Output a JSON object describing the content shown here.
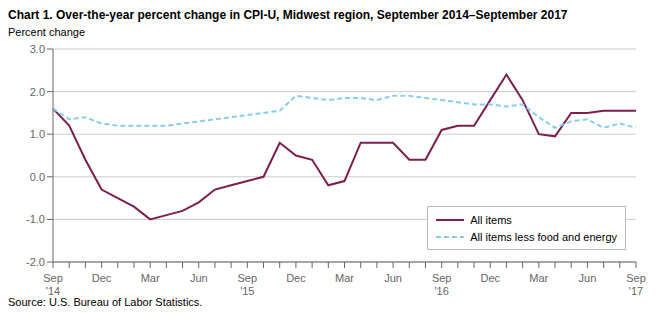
{
  "chart_data": {
    "type": "line",
    "title": "Chart 1. Over-the-year percent change in CPI-U, Midwest region, September 2014–September 2017",
    "ylabel": "Percent change",
    "source": "Source: U.S. Bureau of Labor Statistics.",
    "categories": [
      "Sep\n'14",
      null,
      null,
      "Dec",
      null,
      null,
      "Mar",
      null,
      null,
      "Jun",
      null,
      null,
      "Sep\n'15",
      null,
      null,
      "Dec",
      null,
      null,
      "Mar",
      null,
      null,
      "Jun",
      null,
      null,
      "Sep\n'16",
      null,
      null,
      "Dec",
      null,
      null,
      "Mar",
      null,
      null,
      "Jun",
      null,
      null,
      "Sep\n'17"
    ],
    "series": [
      {
        "name": "All items",
        "color": "#7B1F4E",
        "line_style": "solid",
        "values": [
          1.6,
          1.2,
          0.4,
          -0.3,
          -0.5,
          -0.7,
          -1.0,
          -0.9,
          -0.8,
          -0.6,
          -0.3,
          -0.2,
          -0.1,
          0.0,
          0.8,
          0.5,
          0.4,
          -0.2,
          -0.1,
          0.8,
          0.8,
          0.8,
          0.4,
          0.4,
          1.1,
          1.2,
          1.2,
          1.8,
          2.4,
          1.8,
          1.0,
          0.95,
          1.5,
          1.5,
          1.55,
          1.55,
          1.55
        ]
      },
      {
        "name": "All items less food and energy",
        "color": "#87CEEB",
        "line_style": "dashed",
        "values": [
          1.6,
          1.35,
          1.4,
          1.25,
          1.2,
          1.2,
          1.2,
          1.2,
          1.25,
          1.3,
          1.35,
          1.4,
          1.45,
          1.5,
          1.55,
          1.9,
          1.85,
          1.8,
          1.85,
          1.85,
          1.8,
          1.9,
          1.9,
          1.85,
          1.8,
          1.75,
          1.7,
          1.7,
          1.65,
          1.7,
          1.4,
          1.15,
          1.3,
          1.35,
          1.15,
          1.25,
          1.15
        ]
      }
    ],
    "ylim": [
      -2.0,
      3.0
    ],
    "yticks": [
      {
        "value": -2.0,
        "label": "-2.0"
      },
      {
        "value": -1.0,
        "label": "-1.0"
      },
      {
        "value": 0.0,
        "label": "0.0"
      },
      {
        "value": 1.0,
        "label": "1.0"
      },
      {
        "value": 2.0,
        "label": "2.0"
      },
      {
        "value": 3.0,
        "label": "3.0"
      }
    ],
    "grid": true,
    "legend": "lower right"
  }
}
